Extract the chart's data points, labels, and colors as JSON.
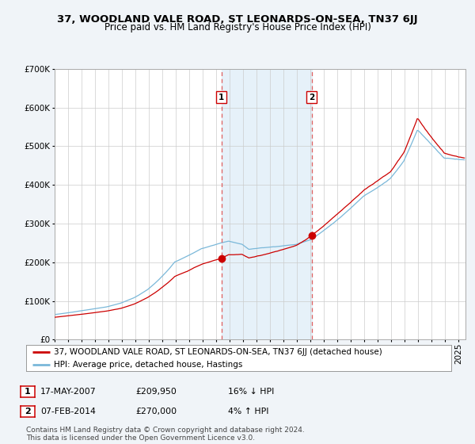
{
  "title": "37, WOODLAND VALE ROAD, ST LEONARDS-ON-SEA, TN37 6JJ",
  "subtitle": "Price paid vs. HM Land Registry's House Price Index (HPI)",
  "ylim": [
    0,
    700000
  ],
  "yticks": [
    0,
    100000,
    200000,
    300000,
    400000,
    500000,
    600000,
    700000
  ],
  "ytick_labels": [
    "£0",
    "£100K",
    "£200K",
    "£300K",
    "£400K",
    "£500K",
    "£600K",
    "£700K"
  ],
  "hpi_color": "#7ab8d9",
  "price_color": "#cc0000",
  "marker_color": "#cc0000",
  "shade_color": "#daeaf7",
  "dashed_line_color": "#e06060",
  "sale1_year": 2007.375,
  "sale2_year": 2014.083,
  "sale1_price_val": 209950,
  "sale2_price_val": 270000,
  "sale1_date": "17-MAY-2007",
  "sale1_price": "£209,950",
  "sale1_hpi": "16% ↓ HPI",
  "sale2_date": "07-FEB-2014",
  "sale2_price": "£270,000",
  "sale2_hpi": "4% ↑ HPI",
  "legend1": "37, WOODLAND VALE ROAD, ST LEONARDS-ON-SEA, TN37 6JJ (detached house)",
  "legend2": "HPI: Average price, detached house, Hastings",
  "footnote": "Contains HM Land Registry data © Crown copyright and database right 2024.\nThis data is licensed under the Open Government Licence v3.0.",
  "bg_color": "#f0f4f8",
  "plot_bg_color": "#ffffff",
  "grid_color": "#cccccc",
  "title_fontsize": 9.5,
  "subtitle_fontsize": 8.5,
  "tick_fontsize": 7.5,
  "legend_fontsize": 7.5,
  "footnote_fontsize": 6.5
}
